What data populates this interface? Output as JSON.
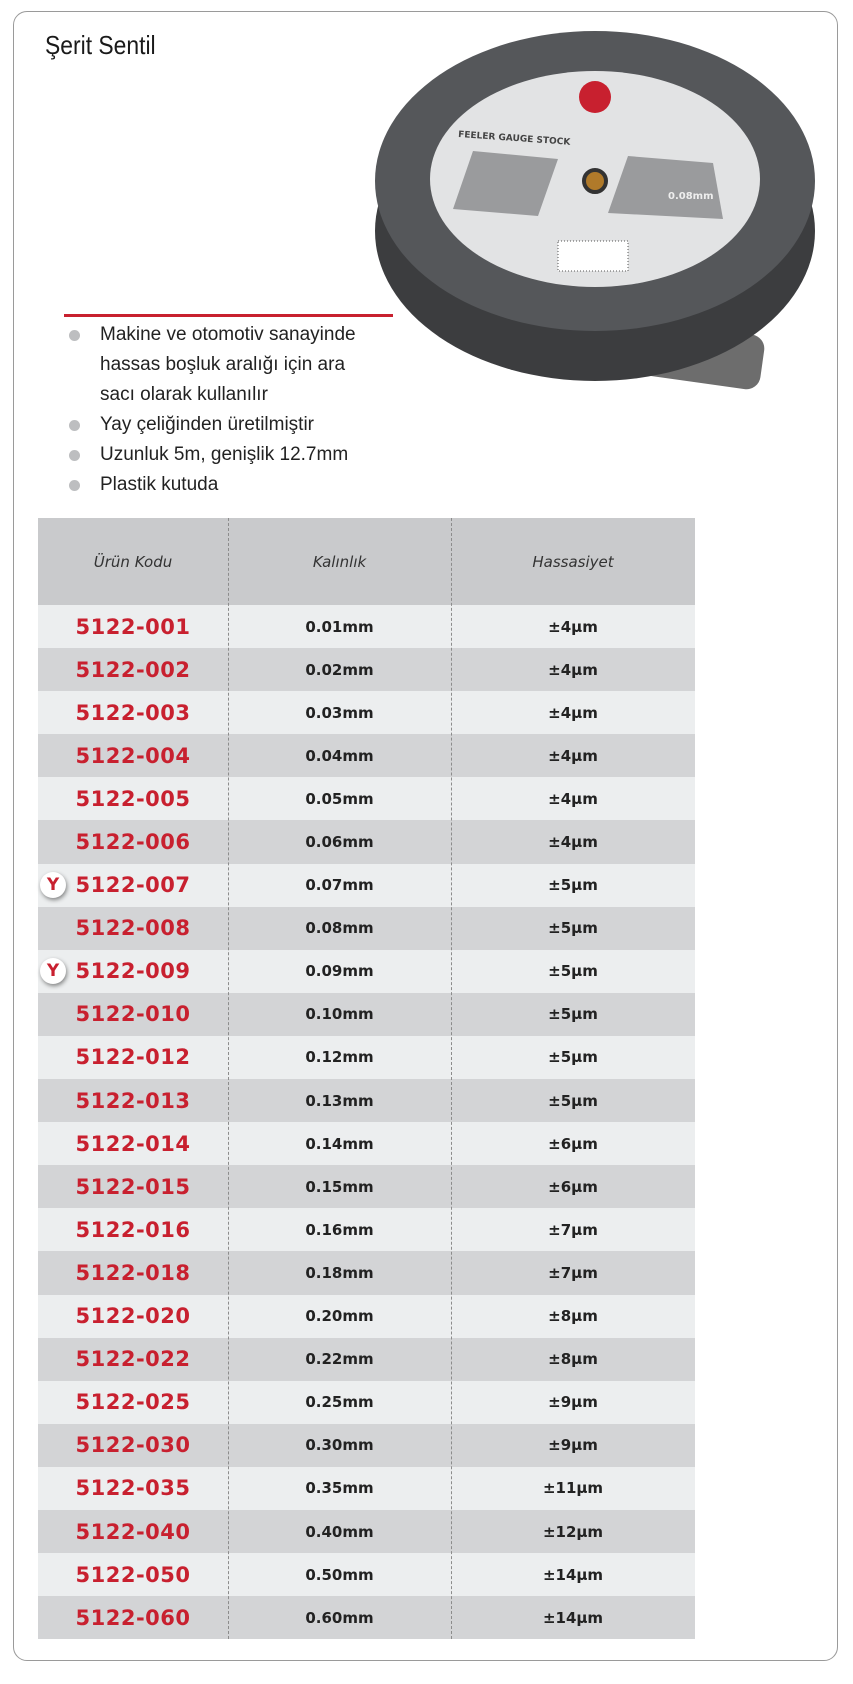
{
  "header": {
    "title": "Şerit Sentil"
  },
  "image": {
    "label": "FEELER GAUGE STOCK",
    "size": "0.08mm"
  },
  "features": [
    "Makine ve otomotiv sanayinde hassas boşluk aralığı için ara sacı olarak kullanılır",
    "Yay çeliğinden üretilmiştir",
    "Uzunluk 5m,  genişlik 12.7mm",
    "Plastik kutuda"
  ],
  "table": {
    "columns": [
      "Ürün Kodu",
      "Kalınlık",
      "Hassasiyet"
    ],
    "rows": [
      {
        "code": "5122-001",
        "thickness": "0.01mm",
        "precision": "±4μm"
      },
      {
        "code": "5122-002",
        "thickness": "0.02mm",
        "precision": "±4μm"
      },
      {
        "code": "5122-003",
        "thickness": "0.03mm",
        "precision": "±4μm"
      },
      {
        "code": "5122-004",
        "thickness": "0.04mm",
        "precision": "±4μm"
      },
      {
        "code": "5122-005",
        "thickness": "0.05mm",
        "precision": "±4μm"
      },
      {
        "code": "5122-006",
        "thickness": "0.06mm",
        "precision": "±4μm"
      },
      {
        "code": "5122-007",
        "thickness": "0.07mm",
        "precision": "±5μm",
        "badge": "Y"
      },
      {
        "code": "5122-008",
        "thickness": "0.08mm",
        "precision": "±5μm"
      },
      {
        "code": "5122-009",
        "thickness": "0.09mm",
        "precision": "±5μm",
        "badge": "Y"
      },
      {
        "code": "5122-010",
        "thickness": "0.10mm",
        "precision": "±5μm"
      },
      {
        "code": "5122-012",
        "thickness": "0.12mm",
        "precision": "±5μm"
      },
      {
        "code": "5122-013",
        "thickness": "0.13mm",
        "precision": "±5μm"
      },
      {
        "code": "5122-014",
        "thickness": "0.14mm",
        "precision": "±6μm"
      },
      {
        "code": "5122-015",
        "thickness": "0.15mm",
        "precision": "±6μm"
      },
      {
        "code": "5122-016",
        "thickness": "0.16mm",
        "precision": "±7μm"
      },
      {
        "code": "5122-018",
        "thickness": "0.18mm",
        "precision": "±7μm"
      },
      {
        "code": "5122-020",
        "thickness": "0.20mm",
        "precision": "±8μm"
      },
      {
        "code": "5122-022",
        "thickness": "0.22mm",
        "precision": "±8μm"
      },
      {
        "code": "5122-025",
        "thickness": "0.25mm",
        "precision": "±9μm"
      },
      {
        "code": "5122-030",
        "thickness": "0.30mm",
        "precision": "±9μm"
      },
      {
        "code": "5122-035",
        "thickness": "0.35mm",
        "precision": "±11μm"
      },
      {
        "code": "5122-040",
        "thickness": "0.40mm",
        "precision": "±12μm"
      },
      {
        "code": "5122-050",
        "thickness": "0.50mm",
        "precision": "±14μm"
      },
      {
        "code": "5122-060",
        "thickness": "0.60mm",
        "precision": "±14μm"
      }
    ]
  }
}
